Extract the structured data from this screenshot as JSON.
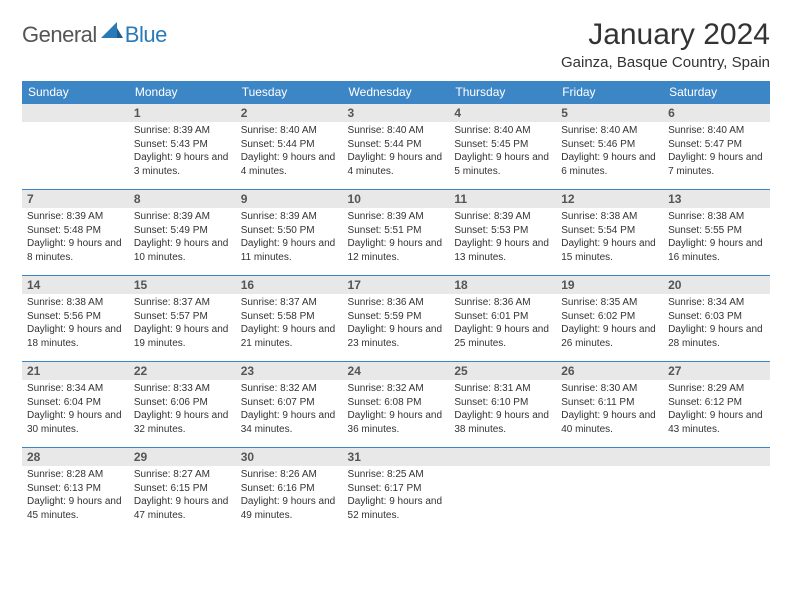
{
  "brand": {
    "part1": "General",
    "part2": "Blue"
  },
  "title": "January 2024",
  "location": "Gainza, Basque Country, Spain",
  "colors": {
    "header_bg": "#3d86c6",
    "header_text": "#ffffff",
    "daynum_bg": "#e8e8e8",
    "daynum_text": "#555555",
    "body_text": "#333333",
    "row_border": "#3d86c6",
    "brand_grey": "#555555",
    "brand_blue": "#2a7ab8"
  },
  "day_labels": [
    "Sunday",
    "Monday",
    "Tuesday",
    "Wednesday",
    "Thursday",
    "Friday",
    "Saturday"
  ],
  "weeks": [
    [
      null,
      {
        "n": "1",
        "sr": "8:39 AM",
        "ss": "5:43 PM",
        "dl": "9 hours and 3 minutes."
      },
      {
        "n": "2",
        "sr": "8:40 AM",
        "ss": "5:44 PM",
        "dl": "9 hours and 4 minutes."
      },
      {
        "n": "3",
        "sr": "8:40 AM",
        "ss": "5:44 PM",
        "dl": "9 hours and 4 minutes."
      },
      {
        "n": "4",
        "sr": "8:40 AM",
        "ss": "5:45 PM",
        "dl": "9 hours and 5 minutes."
      },
      {
        "n": "5",
        "sr": "8:40 AM",
        "ss": "5:46 PM",
        "dl": "9 hours and 6 minutes."
      },
      {
        "n": "6",
        "sr": "8:40 AM",
        "ss": "5:47 PM",
        "dl": "9 hours and 7 minutes."
      }
    ],
    [
      {
        "n": "7",
        "sr": "8:39 AM",
        "ss": "5:48 PM",
        "dl": "9 hours and 8 minutes."
      },
      {
        "n": "8",
        "sr": "8:39 AM",
        "ss": "5:49 PM",
        "dl": "9 hours and 10 minutes."
      },
      {
        "n": "9",
        "sr": "8:39 AM",
        "ss": "5:50 PM",
        "dl": "9 hours and 11 minutes."
      },
      {
        "n": "10",
        "sr": "8:39 AM",
        "ss": "5:51 PM",
        "dl": "9 hours and 12 minutes."
      },
      {
        "n": "11",
        "sr": "8:39 AM",
        "ss": "5:53 PM",
        "dl": "9 hours and 13 minutes."
      },
      {
        "n": "12",
        "sr": "8:38 AM",
        "ss": "5:54 PM",
        "dl": "9 hours and 15 minutes."
      },
      {
        "n": "13",
        "sr": "8:38 AM",
        "ss": "5:55 PM",
        "dl": "9 hours and 16 minutes."
      }
    ],
    [
      {
        "n": "14",
        "sr": "8:38 AM",
        "ss": "5:56 PM",
        "dl": "9 hours and 18 minutes."
      },
      {
        "n": "15",
        "sr": "8:37 AM",
        "ss": "5:57 PM",
        "dl": "9 hours and 19 minutes."
      },
      {
        "n": "16",
        "sr": "8:37 AM",
        "ss": "5:58 PM",
        "dl": "9 hours and 21 minutes."
      },
      {
        "n": "17",
        "sr": "8:36 AM",
        "ss": "5:59 PM",
        "dl": "9 hours and 23 minutes."
      },
      {
        "n": "18",
        "sr": "8:36 AM",
        "ss": "6:01 PM",
        "dl": "9 hours and 25 minutes."
      },
      {
        "n": "19",
        "sr": "8:35 AM",
        "ss": "6:02 PM",
        "dl": "9 hours and 26 minutes."
      },
      {
        "n": "20",
        "sr": "8:34 AM",
        "ss": "6:03 PM",
        "dl": "9 hours and 28 minutes."
      }
    ],
    [
      {
        "n": "21",
        "sr": "8:34 AM",
        "ss": "6:04 PM",
        "dl": "9 hours and 30 minutes."
      },
      {
        "n": "22",
        "sr": "8:33 AM",
        "ss": "6:06 PM",
        "dl": "9 hours and 32 minutes."
      },
      {
        "n": "23",
        "sr": "8:32 AM",
        "ss": "6:07 PM",
        "dl": "9 hours and 34 minutes."
      },
      {
        "n": "24",
        "sr": "8:32 AM",
        "ss": "6:08 PM",
        "dl": "9 hours and 36 minutes."
      },
      {
        "n": "25",
        "sr": "8:31 AM",
        "ss": "6:10 PM",
        "dl": "9 hours and 38 minutes."
      },
      {
        "n": "26",
        "sr": "8:30 AM",
        "ss": "6:11 PM",
        "dl": "9 hours and 40 minutes."
      },
      {
        "n": "27",
        "sr": "8:29 AM",
        "ss": "6:12 PM",
        "dl": "9 hours and 43 minutes."
      }
    ],
    [
      {
        "n": "28",
        "sr": "8:28 AM",
        "ss": "6:13 PM",
        "dl": "9 hours and 45 minutes."
      },
      {
        "n": "29",
        "sr": "8:27 AM",
        "ss": "6:15 PM",
        "dl": "9 hours and 47 minutes."
      },
      {
        "n": "30",
        "sr": "8:26 AM",
        "ss": "6:16 PM",
        "dl": "9 hours and 49 minutes."
      },
      {
        "n": "31",
        "sr": "8:25 AM",
        "ss": "6:17 PM",
        "dl": "9 hours and 52 minutes."
      },
      null,
      null,
      null
    ]
  ],
  "labels": {
    "sunrise": "Sunrise:",
    "sunset": "Sunset:",
    "daylight": "Daylight:"
  }
}
